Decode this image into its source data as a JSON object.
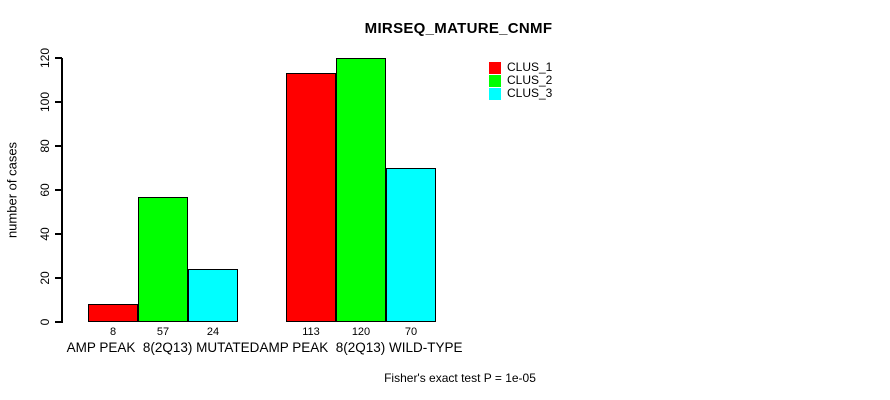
{
  "chart_data": {
    "type": "bar",
    "title": "MIRSEQ_MATURE_CNMF",
    "ylabel": "number of cases",
    "xlabel": "",
    "footnote": "Fisher's exact test P = 1e-05",
    "ylim": [
      0,
      120
    ],
    "yticks": [
      0,
      20,
      40,
      60,
      80,
      100,
      120
    ],
    "grid": false,
    "legend_position": "top-right",
    "background_color": "#ffffff",
    "axis_color": "#000000",
    "bar_border_color": "#000000",
    "bar_value_labels": true,
    "categories": [
      "AMP PEAK  8(2Q13) MUTATED",
      "AMP PEAK  8(2Q13) WILD-TYPE"
    ],
    "series": [
      {
        "name": "CLUS_1",
        "color": "#ff0000",
        "values": [
          8,
          113
        ]
      },
      {
        "name": "CLUS_2",
        "color": "#00ff00",
        "values": [
          57,
          120
        ]
      },
      {
        "name": "CLUS_3",
        "color": "#00ffff",
        "values": [
          24,
          70
        ]
      }
    ]
  }
}
